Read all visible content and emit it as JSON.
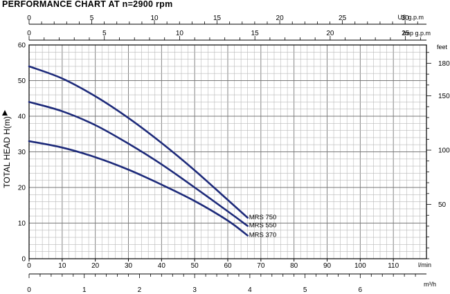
{
  "chart_data": {
    "type": "line",
    "title": "PERFORMANCE CHART AT n=2900 rpm",
    "ylabel": "TOTAL HEAD H(m)",
    "y_axis": {
      "min": 0,
      "max": 60,
      "ticks": [
        "0",
        "10",
        "20",
        "30",
        "40",
        "50",
        "60"
      ]
    },
    "x_axis_main": {
      "unit": "l/min",
      "min": 0,
      "max": 120,
      "ticks": [
        "0",
        "10",
        "20",
        "30",
        "40",
        "50",
        "60",
        "70",
        "80",
        "90",
        "100",
        "110"
      ]
    },
    "x_axis_m3h": {
      "unit": "m³/h",
      "ticks": [
        "0",
        "1",
        "2",
        "3",
        "4",
        "5",
        "6"
      ]
    },
    "x_axis_usgpm": {
      "unit": "US g.p.m",
      "ticks": [
        "0",
        "5",
        "10",
        "15",
        "20",
        "25",
        "30"
      ]
    },
    "x_axis_impgpm": {
      "unit": "Imp g.p.m",
      "ticks": [
        "0",
        "5",
        "10",
        "15",
        "20",
        "25"
      ]
    },
    "y_axis_feet": {
      "unit": "feet",
      "ticks": [
        "50",
        "100",
        "150",
        "180"
      ]
    },
    "curve_color": "#1d2a7a",
    "series": [
      {
        "name": "MRS 750",
        "x": [
          0,
          10,
          20,
          30,
          40,
          50,
          60,
          66
        ],
        "y": [
          54,
          50.6,
          45.6,
          39.5,
          32.5,
          24.8,
          16.5,
          11.5
        ]
      },
      {
        "name": "MRS 550",
        "x": [
          0,
          10,
          20,
          30,
          40,
          50,
          60,
          66
        ],
        "y": [
          44,
          41.4,
          37.5,
          32.3,
          26.5,
          20,
          13.3,
          9.2
        ]
      },
      {
        "name": "MRS 370",
        "x": [
          0,
          10,
          20,
          30,
          40,
          50,
          60,
          66
        ],
        "y": [
          33,
          31.2,
          28.5,
          25,
          20.8,
          16.2,
          10.7,
          6.5
        ]
      }
    ]
  }
}
